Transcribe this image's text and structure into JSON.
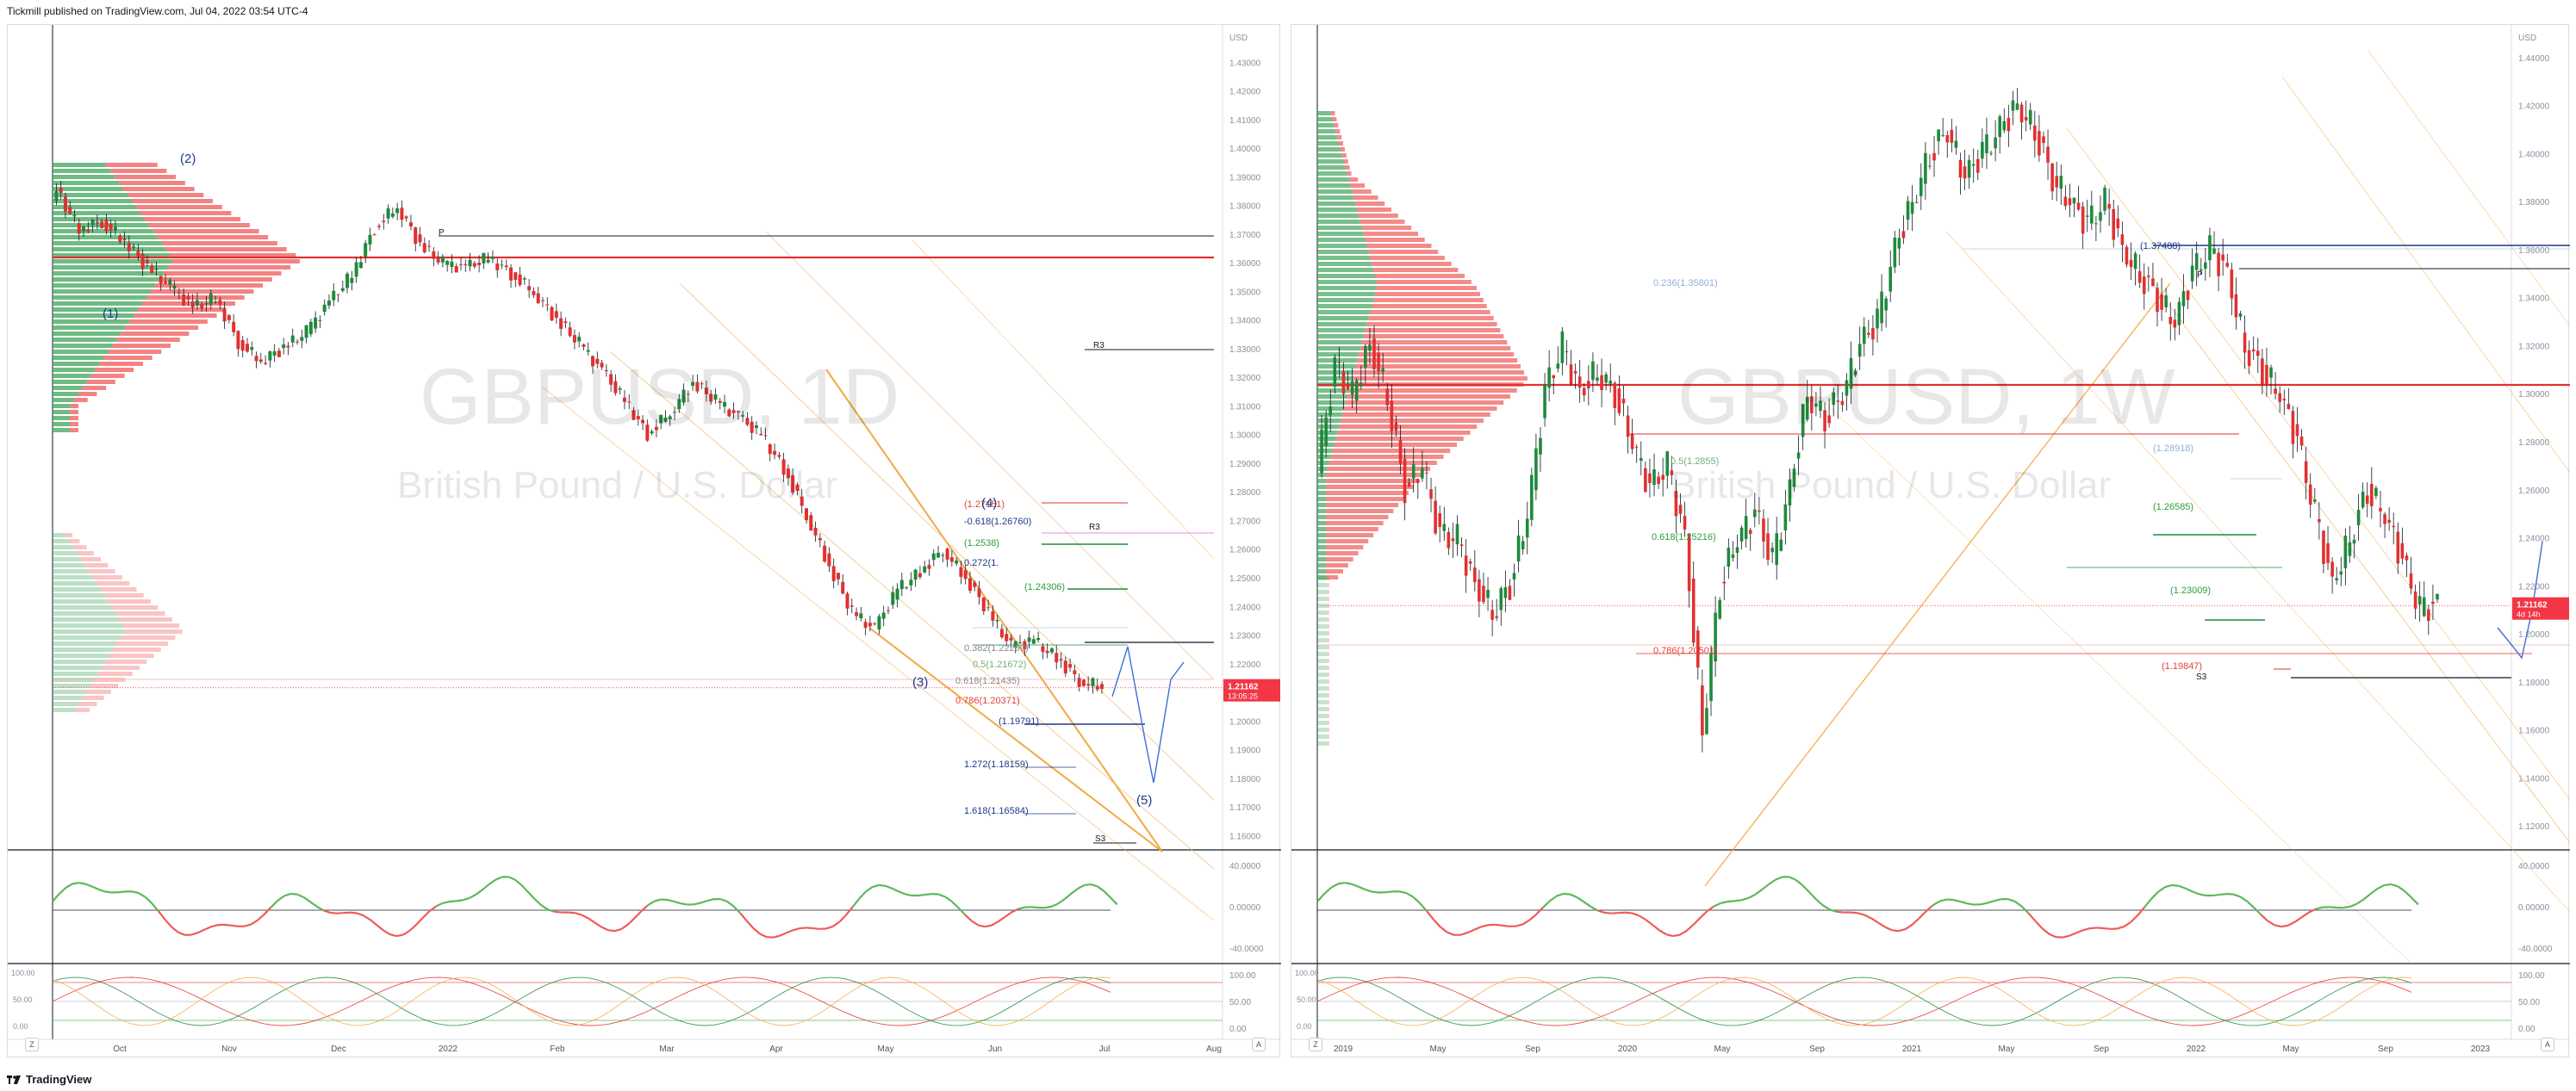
{
  "header": {
    "publisher": "Tickmill published on TradingView.com, Jul 04, 2022 03:54 UTC-4"
  },
  "footer": {
    "brand": "TradingView",
    "logo": "tradingview-logo-icon"
  },
  "chart_data": [
    {
      "type": "candlestick",
      "symbol_watermark": "GBPUSD, 1D",
      "description_watermark": "British Pound / U.S. Dollar",
      "currency": "USD",
      "price_axis_labels": [
        "1.43000",
        "1.42000",
        "1.41000",
        "1.40000",
        "1.39000",
        "1.38000",
        "1.37000",
        "1.36000",
        "1.35000",
        "1.34000",
        "1.33000",
        "1.32000",
        "1.31000",
        "1.30000",
        "1.29000",
        "1.28000",
        "1.27000",
        "1.26000",
        "1.25000",
        "1.24000",
        "1.23000",
        "1.22000",
        "1.21000",
        "1.20000",
        "1.19000",
        "1.18000",
        "1.17000",
        "1.16000"
      ],
      "ylim": [
        1.155,
        1.44
      ],
      "time_axis_labels": [
        "Oct",
        "Nov",
        "Dec",
        "2022",
        "Feb",
        "Mar",
        "Apr",
        "May",
        "Jun",
        "Jul",
        "Aug"
      ],
      "last_price": {
        "value": "1.21162",
        "countdown": "13:05:25",
        "color": "#f23645"
      },
      "wave_labels": [
        "(1)",
        "(2)",
        "(3)",
        "(4)",
        "(5)"
      ],
      "pivot_labels": [
        "P",
        "R3",
        "R3",
        "S3"
      ],
      "fib_labels": [
        {
          "text": "(1.27151)",
          "color": "#e0443b"
        },
        {
          "text": "-0.618(1.26760)",
          "color": "#1e3a8a"
        },
        {
          "text": "(1.2538)",
          "color": "#2e9e3a"
        },
        {
          "text": "0.272(1.",
          "color": "#1e3a8a"
        },
        {
          "text": "(1.24306)",
          "color": "#2e9e3a"
        },
        {
          "text": "0.382(1.22290)",
          "color": "#8a8a8a"
        },
        {
          "text": "0.5(1.21672)",
          "color": "#6fb27a"
        },
        {
          "text": "0.618(1.21435)",
          "color": "#8a8a8a"
        },
        {
          "text": "0.786(1.20371)",
          "color": "#e0443b"
        },
        {
          "text": "(1.19791)",
          "color": "#1e3a8a"
        },
        {
          "text": "1.272(1.18159)",
          "color": "#1e3a8a"
        },
        {
          "text": "1.618(1.16584)",
          "color": "#1e3a8a"
        }
      ],
      "close_series_approx": [
        1.364,
        1.385,
        1.372,
        1.374,
        1.368,
        1.358,
        1.352,
        1.344,
        1.348,
        1.332,
        1.326,
        1.33,
        1.336,
        1.346,
        1.356,
        1.372,
        1.38,
        1.366,
        1.36,
        1.358,
        1.362,
        1.356,
        1.35,
        1.34,
        1.332,
        1.322,
        1.312,
        1.3,
        1.308,
        1.318,
        1.312,
        1.306,
        1.3,
        1.288,
        1.272,
        1.254,
        1.238,
        1.232,
        1.246,
        1.252,
        1.26,
        1.25,
        1.238,
        1.226,
        1.228,
        1.222,
        1.214,
        1.212
      ],
      "oscillator_1": {
        "levels": [
          "40.0000",
          "0.00000",
          "-40.0000"
        ]
      },
      "oscillator_2": {
        "levels": [
          "100.00",
          "50.00",
          "0.00"
        ]
      },
      "buttons": {
        "zoom": "Z",
        "auto": "A"
      }
    },
    {
      "type": "candlestick",
      "symbol_watermark": "GBPUSD, 1W",
      "description_watermark": "British Pound / U.S. Dollar",
      "currency": "USD",
      "price_axis_labels": [
        "1.44000",
        "1.42000",
        "1.40000",
        "1.38000",
        "1.36000",
        "1.34000",
        "1.32000",
        "1.30000",
        "1.28000",
        "1.26000",
        "1.24000",
        "1.22000",
        "1.20000",
        "1.18000",
        "1.16000",
        "1.14000",
        "1.12000"
      ],
      "ylim": [
        1.11,
        1.45
      ],
      "time_axis_labels": [
        "2019",
        "May",
        "Sep",
        "2020",
        "May",
        "Sep",
        "2021",
        "May",
        "Sep",
        "2022",
        "May",
        "Sep",
        "2023"
      ],
      "last_price": {
        "value": "1.21162",
        "countdown": "4d 14h",
        "color": "#f23645"
      },
      "pivot_labels": [
        "P",
        "S3"
      ],
      "fib_labels": [
        {
          "text": "(1.37488)",
          "color": "#1e3a8a"
        },
        {
          "text": "0.236(1.35801)",
          "color": "#8fb3d9"
        },
        {
          "text": "0.5(1.2855)",
          "color": "#6fb27a"
        },
        {
          "text": "(1.28918)",
          "color": "#8fb3d9"
        },
        {
          "text": "(1.26585)",
          "color": "#2e9e3a"
        },
        {
          "text": "0.618(1.25216)",
          "color": "#2e9e3a"
        },
        {
          "text": "(1.23009)",
          "color": "#2e9e3a"
        },
        {
          "text": "0.786(1.20501)",
          "color": "#e0443b"
        },
        {
          "text": "(1.19847)",
          "color": "#e0443b"
        }
      ],
      "close_series_approx": [
        1.27,
        1.31,
        1.3,
        1.32,
        1.3,
        1.26,
        1.27,
        1.24,
        1.24,
        1.22,
        1.21,
        1.22,
        1.25,
        1.3,
        1.32,
        1.3,
        1.31,
        1.3,
        1.28,
        1.26,
        1.27,
        1.24,
        1.16,
        1.22,
        1.24,
        1.25,
        1.23,
        1.26,
        1.3,
        1.29,
        1.3,
        1.32,
        1.33,
        1.36,
        1.38,
        1.4,
        1.41,
        1.39,
        1.4,
        1.41,
        1.42,
        1.41,
        1.39,
        1.38,
        1.37,
        1.38,
        1.36,
        1.35,
        1.34,
        1.33,
        1.35,
        1.36,
        1.35,
        1.32,
        1.31,
        1.3,
        1.28,
        1.25,
        1.22,
        1.24,
        1.26,
        1.25,
        1.23,
        1.21,
        1.212
      ],
      "oscillator_1": {
        "levels": [
          "40.0000",
          "0.00000",
          "-40.0000"
        ]
      },
      "oscillator_2": {
        "levels": [
          "100.00",
          "50.00",
          "0.00"
        ]
      },
      "buttons": {
        "zoom": "Z",
        "auto": "A"
      }
    }
  ]
}
